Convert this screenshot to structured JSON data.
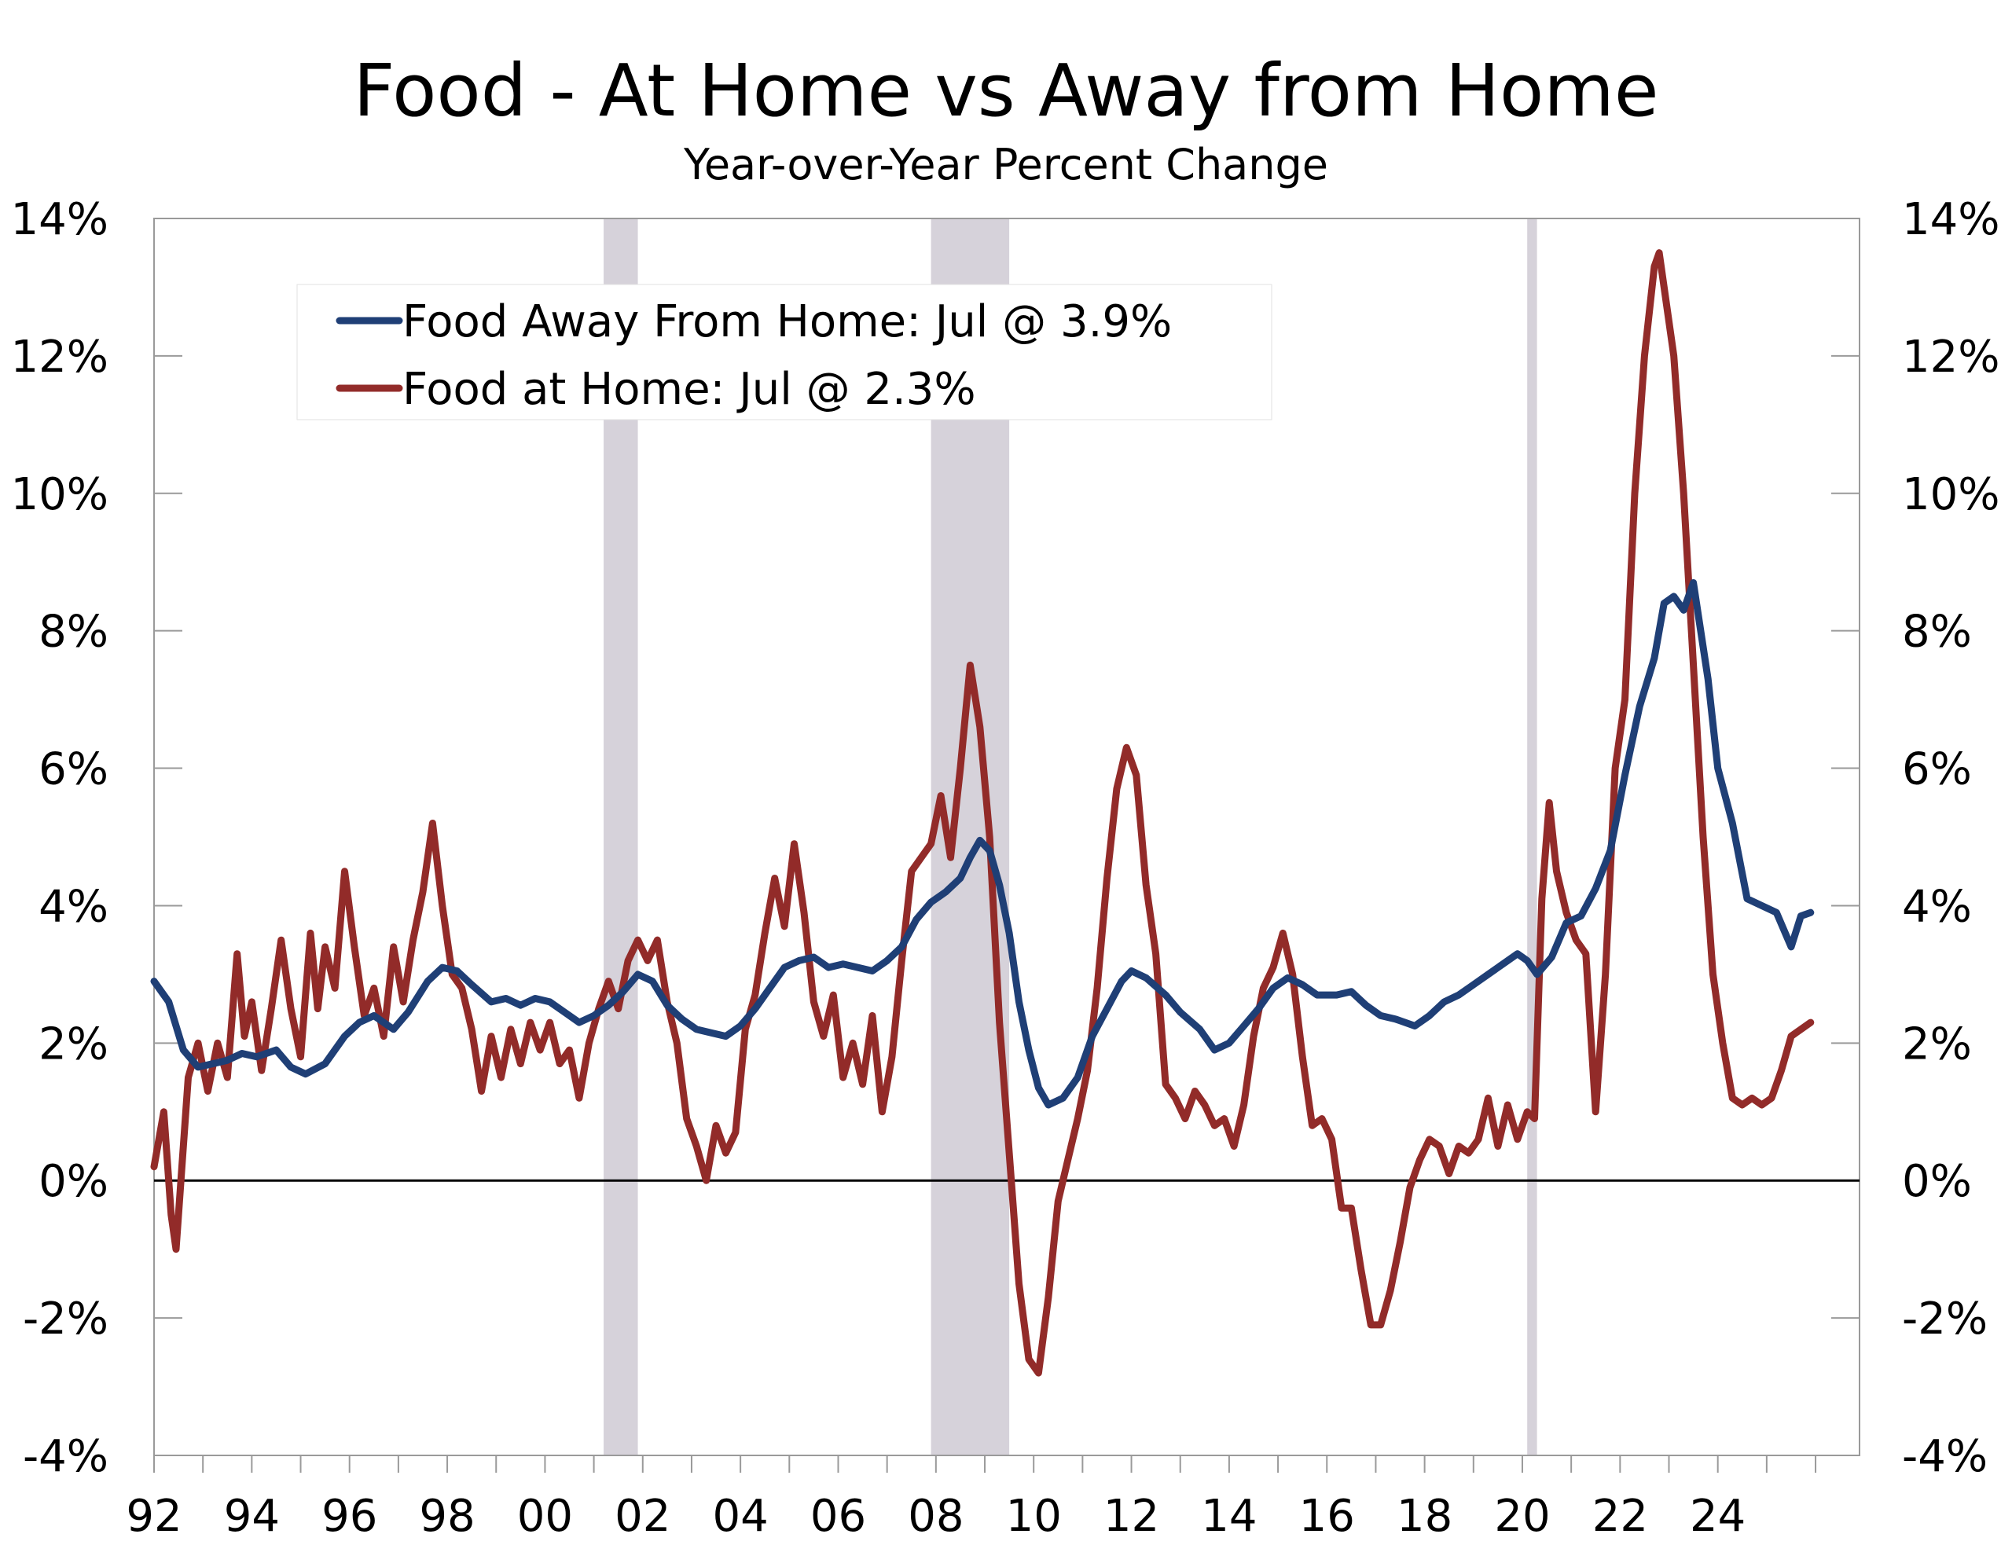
{
  "title": "Food - At Home vs Away from Home",
  "subtitle": "Year-over-Year Percent Change",
  "chart_data": {
    "type": "line",
    "title": "Food - At Home vs Away from Home",
    "subtitle": "Year-over-Year Percent Change",
    "ylim": [
      -4,
      14
    ],
    "y_ticks": [
      -4,
      -2,
      0,
      2,
      4,
      6,
      8,
      10,
      12,
      14
    ],
    "y_tick_labels": [
      "-4%",
      "-2%",
      "0%",
      "2%",
      "4%",
      "6%",
      "8%",
      "10%",
      "12%",
      "14%"
    ],
    "xlim": [
      1992.0,
      2026.9
    ],
    "x_ticks": [
      1992,
      1994,
      1996,
      1998,
      2000,
      2002,
      2004,
      2006,
      2008,
      2010,
      2012,
      2014,
      2016,
      2018,
      2020,
      2022,
      2024
    ],
    "x_tick_labels": [
      "92",
      "94",
      "96",
      "98",
      "00",
      "02",
      "04",
      "06",
      "08",
      "10",
      "12",
      "14",
      "16",
      "18",
      "20",
      "22",
      "24"
    ],
    "grid": false,
    "legend_position": "top-left",
    "recessions": [
      [
        2001.2,
        2001.9
      ],
      [
        2007.9,
        2009.5
      ],
      [
        2020.1,
        2020.3
      ]
    ],
    "series": [
      {
        "name": "Food Away From Home: Jul @ 3.9%",
        "color": "#1f3f76",
        "points": [
          [
            1992.0,
            2.9
          ],
          [
            1992.3,
            2.6
          ],
          [
            1992.6,
            1.9
          ],
          [
            1992.9,
            1.65
          ],
          [
            1993.2,
            1.7
          ],
          [
            1993.5,
            1.75
          ],
          [
            1993.8,
            1.85
          ],
          [
            1994.1,
            1.8
          ],
          [
            1994.5,
            1.9
          ],
          [
            1994.8,
            1.65
          ],
          [
            1995.1,
            1.55
          ],
          [
            1995.5,
            1.7
          ],
          [
            1995.9,
            2.1
          ],
          [
            1996.2,
            2.3
          ],
          [
            1996.5,
            2.4
          ],
          [
            1996.9,
            2.2
          ],
          [
            1997.2,
            2.45
          ],
          [
            1997.6,
            2.9
          ],
          [
            1997.9,
            3.1
          ],
          [
            1998.2,
            3.05
          ],
          [
            1998.5,
            2.85
          ],
          [
            1998.9,
            2.6
          ],
          [
            1999.2,
            2.65
          ],
          [
            1999.5,
            2.55
          ],
          [
            1999.8,
            2.65
          ],
          [
            2000.1,
            2.6
          ],
          [
            2000.4,
            2.45
          ],
          [
            2000.7,
            2.3
          ],
          [
            2001.0,
            2.4
          ],
          [
            2001.3,
            2.55
          ],
          [
            2001.6,
            2.75
          ],
          [
            2001.9,
            3.0
          ],
          [
            2002.2,
            2.9
          ],
          [
            2002.5,
            2.55
          ],
          [
            2002.8,
            2.35
          ],
          [
            2003.1,
            2.2
          ],
          [
            2003.4,
            2.15
          ],
          [
            2003.7,
            2.1
          ],
          [
            2004.0,
            2.25
          ],
          [
            2004.3,
            2.5
          ],
          [
            2004.6,
            2.8
          ],
          [
            2004.9,
            3.1
          ],
          [
            2005.2,
            3.2
          ],
          [
            2005.5,
            3.25
          ],
          [
            2005.8,
            3.1
          ],
          [
            2006.1,
            3.15
          ],
          [
            2006.4,
            3.1
          ],
          [
            2006.7,
            3.05
          ],
          [
            2007.0,
            3.2
          ],
          [
            2007.3,
            3.4
          ],
          [
            2007.6,
            3.8
          ],
          [
            2007.9,
            4.05
          ],
          [
            2008.2,
            4.2
          ],
          [
            2008.5,
            4.4
          ],
          [
            2008.7,
            4.7
          ],
          [
            2008.9,
            4.95
          ],
          [
            2009.1,
            4.8
          ],
          [
            2009.3,
            4.3
          ],
          [
            2009.5,
            3.6
          ],
          [
            2009.7,
            2.6
          ],
          [
            2009.9,
            1.9
          ],
          [
            2010.1,
            1.35
          ],
          [
            2010.3,
            1.1
          ],
          [
            2010.6,
            1.2
          ],
          [
            2010.9,
            1.5
          ],
          [
            2011.2,
            2.1
          ],
          [
            2011.5,
            2.5
          ],
          [
            2011.8,
            2.9
          ],
          [
            2012.0,
            3.05
          ],
          [
            2012.3,
            2.95
          ],
          [
            2012.7,
            2.7
          ],
          [
            2013.0,
            2.45
          ],
          [
            2013.4,
            2.2
          ],
          [
            2013.7,
            1.9
          ],
          [
            2014.0,
            2.0
          ],
          [
            2014.3,
            2.25
          ],
          [
            2014.6,
            2.5
          ],
          [
            2014.9,
            2.8
          ],
          [
            2015.2,
            2.95
          ],
          [
            2015.5,
            2.85
          ],
          [
            2015.8,
            2.7
          ],
          [
            2016.2,
            2.7
          ],
          [
            2016.5,
            2.75
          ],
          [
            2016.8,
            2.55
          ],
          [
            2017.1,
            2.4
          ],
          [
            2017.4,
            2.35
          ],
          [
            2017.8,
            2.25
          ],
          [
            2018.1,
            2.4
          ],
          [
            2018.4,
            2.6
          ],
          [
            2018.7,
            2.7
          ],
          [
            2019.0,
            2.85
          ],
          [
            2019.3,
            3.0
          ],
          [
            2019.6,
            3.15
          ],
          [
            2019.9,
            3.3
          ],
          [
            2020.1,
            3.2
          ],
          [
            2020.3,
            3.0
          ],
          [
            2020.6,
            3.25
          ],
          [
            2020.9,
            3.75
          ],
          [
            2021.2,
            3.85
          ],
          [
            2021.5,
            4.25
          ],
          [
            2021.8,
            4.8
          ],
          [
            2022.1,
            5.9
          ],
          [
            2022.4,
            6.9
          ],
          [
            2022.7,
            7.6
          ],
          [
            2022.9,
            8.4
          ],
          [
            2023.1,
            8.5
          ],
          [
            2023.3,
            8.3
          ],
          [
            2023.5,
            8.7
          ],
          [
            2023.8,
            7.3
          ],
          [
            2024.0,
            6.0
          ],
          [
            2024.3,
            5.2
          ],
          [
            2024.6,
            4.1
          ],
          [
            2024.9,
            4.0
          ],
          [
            2025.2,
            3.9
          ],
          [
            2025.5,
            3.4
          ],
          [
            2025.7,
            3.85
          ],
          [
            2025.9,
            3.9
          ]
        ]
      },
      {
        "name": "Food at Home: Jul @ 2.3%",
        "color": "#922b29",
        "points": [
          [
            1992.0,
            0.2
          ],
          [
            1992.2,
            1.0
          ],
          [
            1992.35,
            -0.5
          ],
          [
            1992.45,
            -1.0
          ],
          [
            1992.55,
            0.0
          ],
          [
            1992.7,
            1.5
          ],
          [
            1992.9,
            2.0
          ],
          [
            1993.1,
            1.3
          ],
          [
            1993.3,
            2.0
          ],
          [
            1993.5,
            1.5
          ],
          [
            1993.7,
            3.3
          ],
          [
            1993.85,
            2.1
          ],
          [
            1994.0,
            2.6
          ],
          [
            1994.2,
            1.6
          ],
          [
            1994.4,
            2.5
          ],
          [
            1994.6,
            3.5
          ],
          [
            1994.8,
            2.5
          ],
          [
            1995.0,
            1.8
          ],
          [
            1995.2,
            3.6
          ],
          [
            1995.35,
            2.5
          ],
          [
            1995.5,
            3.4
          ],
          [
            1995.7,
            2.8
          ],
          [
            1995.9,
            4.5
          ],
          [
            1996.1,
            3.4
          ],
          [
            1996.3,
            2.4
          ],
          [
            1996.5,
            2.8
          ],
          [
            1996.7,
            2.1
          ],
          [
            1996.9,
            3.4
          ],
          [
            1997.1,
            2.6
          ],
          [
            1997.3,
            3.5
          ],
          [
            1997.5,
            4.2
          ],
          [
            1997.7,
            5.2
          ],
          [
            1997.9,
            4.0
          ],
          [
            1998.1,
            3.0
          ],
          [
            1998.3,
            2.8
          ],
          [
            1998.5,
            2.2
          ],
          [
            1998.7,
            1.3
          ],
          [
            1998.9,
            2.1
          ],
          [
            1999.1,
            1.5
          ],
          [
            1999.3,
            2.2
          ],
          [
            1999.5,
            1.7
          ],
          [
            1999.7,
            2.3
          ],
          [
            1999.9,
            1.9
          ],
          [
            2000.1,
            2.3
          ],
          [
            2000.3,
            1.7
          ],
          [
            2000.5,
            1.9
          ],
          [
            2000.7,
            1.2
          ],
          [
            2000.9,
            2.0
          ],
          [
            2001.1,
            2.5
          ],
          [
            2001.3,
            2.9
          ],
          [
            2001.5,
            2.5
          ],
          [
            2001.7,
            3.2
          ],
          [
            2001.9,
            3.5
          ],
          [
            2002.1,
            3.2
          ],
          [
            2002.3,
            3.5
          ],
          [
            2002.5,
            2.6
          ],
          [
            2002.7,
            2.0
          ],
          [
            2002.9,
            0.9
          ],
          [
            2003.1,
            0.5
          ],
          [
            2003.3,
            0.0
          ],
          [
            2003.5,
            0.8
          ],
          [
            2003.7,
            0.4
          ],
          [
            2003.9,
            0.7
          ],
          [
            2004.1,
            2.2
          ],
          [
            2004.3,
            2.7
          ],
          [
            2004.5,
            3.6
          ],
          [
            2004.7,
            4.4
          ],
          [
            2004.9,
            3.7
          ],
          [
            2005.1,
            4.9
          ],
          [
            2005.3,
            3.9
          ],
          [
            2005.5,
            2.6
          ],
          [
            2005.7,
            2.1
          ],
          [
            2005.9,
            2.7
          ],
          [
            2006.1,
            1.5
          ],
          [
            2006.3,
            2.0
          ],
          [
            2006.5,
            1.4
          ],
          [
            2006.7,
            2.4
          ],
          [
            2006.9,
            1.0
          ],
          [
            2007.1,
            1.8
          ],
          [
            2007.3,
            3.2
          ],
          [
            2007.5,
            4.5
          ],
          [
            2007.7,
            4.7
          ],
          [
            2007.9,
            4.9
          ],
          [
            2008.1,
            5.6
          ],
          [
            2008.3,
            4.7
          ],
          [
            2008.5,
            6.0
          ],
          [
            2008.7,
            7.5
          ],
          [
            2008.9,
            6.6
          ],
          [
            2009.1,
            5.0
          ],
          [
            2009.3,
            2.3
          ],
          [
            2009.5,
            0.4
          ],
          [
            2009.7,
            -1.5
          ],
          [
            2009.9,
            -2.6
          ],
          [
            2010.1,
            -2.8
          ],
          [
            2010.3,
            -1.7
          ],
          [
            2010.5,
            -0.3
          ],
          [
            2010.7,
            0.3
          ],
          [
            2010.9,
            0.9
          ],
          [
            2011.1,
            1.6
          ],
          [
            2011.3,
            2.8
          ],
          [
            2011.5,
            4.4
          ],
          [
            2011.7,
            5.7
          ],
          [
            2011.9,
            6.3
          ],
          [
            2012.1,
            5.9
          ],
          [
            2012.3,
            4.3
          ],
          [
            2012.5,
            3.3
          ],
          [
            2012.7,
            1.4
          ],
          [
            2012.9,
            1.2
          ],
          [
            2013.1,
            0.9
          ],
          [
            2013.3,
            1.3
          ],
          [
            2013.5,
            1.1
          ],
          [
            2013.7,
            0.8
          ],
          [
            2013.9,
            0.9
          ],
          [
            2014.1,
            0.5
          ],
          [
            2014.3,
            1.1
          ],
          [
            2014.5,
            2.1
          ],
          [
            2014.7,
            2.8
          ],
          [
            2014.9,
            3.1
          ],
          [
            2015.1,
            3.6
          ],
          [
            2015.3,
            3.0
          ],
          [
            2015.5,
            1.8
          ],
          [
            2015.7,
            0.8
          ],
          [
            2015.9,
            0.9
          ],
          [
            2016.1,
            0.6
          ],
          [
            2016.3,
            -0.4
          ],
          [
            2016.5,
            -0.4
          ],
          [
            2016.7,
            -1.3
          ],
          [
            2016.9,
            -2.1
          ],
          [
            2017.1,
            -2.1
          ],
          [
            2017.3,
            -1.6
          ],
          [
            2017.5,
            -0.9
          ],
          [
            2017.7,
            -0.1
          ],
          [
            2017.9,
            0.3
          ],
          [
            2018.1,
            0.6
          ],
          [
            2018.3,
            0.5
          ],
          [
            2018.5,
            0.1
          ],
          [
            2018.7,
            0.5
          ],
          [
            2018.9,
            0.4
          ],
          [
            2019.1,
            0.6
          ],
          [
            2019.3,
            1.2
          ],
          [
            2019.5,
            0.5
          ],
          [
            2019.7,
            1.1
          ],
          [
            2019.9,
            0.6
          ],
          [
            2020.1,
            1.0
          ],
          [
            2020.25,
            0.9
          ],
          [
            2020.4,
            4.1
          ],
          [
            2020.55,
            5.5
          ],
          [
            2020.7,
            4.5
          ],
          [
            2020.9,
            3.9
          ],
          [
            2021.1,
            3.5
          ],
          [
            2021.3,
            3.3
          ],
          [
            2021.5,
            1.0
          ],
          [
            2021.7,
            3.0
          ],
          [
            2021.9,
            6.0
          ],
          [
            2022.1,
            7.0
          ],
          [
            2022.3,
            10.0
          ],
          [
            2022.5,
            12.0
          ],
          [
            2022.7,
            13.3
          ],
          [
            2022.8,
            13.5
          ],
          [
            2022.9,
            13.0
          ],
          [
            2023.1,
            12.0
          ],
          [
            2023.3,
            10.0
          ],
          [
            2023.5,
            7.5
          ],
          [
            2023.7,
            5.0
          ],
          [
            2023.9,
            3.0
          ],
          [
            2024.1,
            2.0
          ],
          [
            2024.3,
            1.2
          ],
          [
            2024.5,
            1.1
          ],
          [
            2024.7,
            1.2
          ],
          [
            2024.9,
            1.1
          ],
          [
            2025.1,
            1.2
          ],
          [
            2025.3,
            1.6
          ],
          [
            2025.5,
            2.1
          ],
          [
            2025.7,
            2.2
          ],
          [
            2025.9,
            2.3
          ]
        ]
      }
    ]
  }
}
